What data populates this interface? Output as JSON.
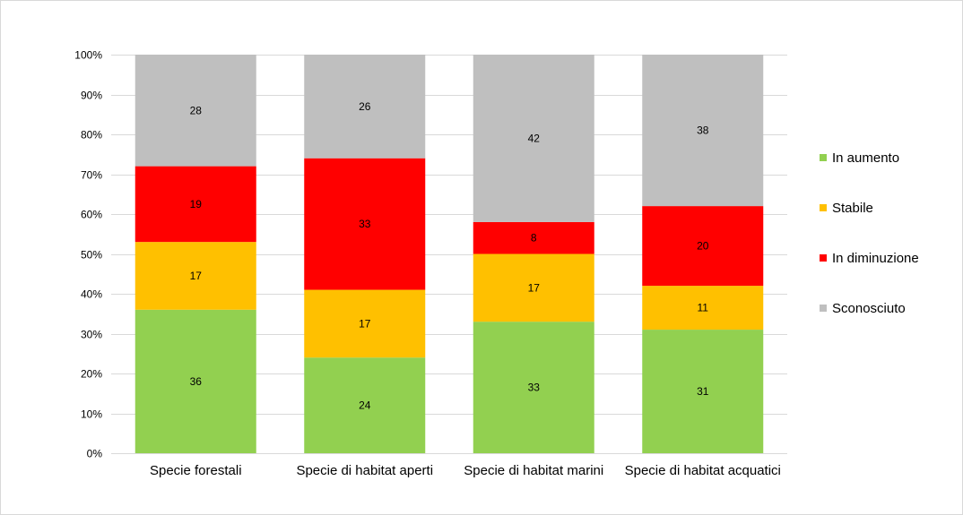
{
  "chart_data": {
    "type": "bar",
    "stacked": true,
    "percent": true,
    "categories": [
      "Specie forestali",
      "Specie di habitat aperti",
      "Specie di habitat marini",
      "Specie di habitat acquatici"
    ],
    "series": [
      {
        "name": "In aumento",
        "color": "#92d050",
        "values": [
          36,
          24,
          33,
          31
        ]
      },
      {
        "name": "Stabile",
        "color": "#ffc000",
        "values": [
          17,
          17,
          17,
          11
        ]
      },
      {
        "name": "In diminuzione",
        "color": "#ff0000",
        "values": [
          19,
          33,
          8,
          20
        ]
      },
      {
        "name": "Sconosciuto",
        "color": "#bfbfbf",
        "values": [
          28,
          26,
          42,
          38
        ]
      }
    ],
    "y_ticks": [
      "0%",
      "10%",
      "20%",
      "30%",
      "40%",
      "50%",
      "60%",
      "70%",
      "80%",
      "90%",
      "100%"
    ],
    "ylim": [
      0,
      100
    ],
    "grid": true,
    "legend_position": "right",
    "legend_order": [
      "In aumento",
      "Stabile",
      "In diminuzione",
      "Sconosciuto"
    ],
    "gridline_color": "#d9d9d9"
  }
}
